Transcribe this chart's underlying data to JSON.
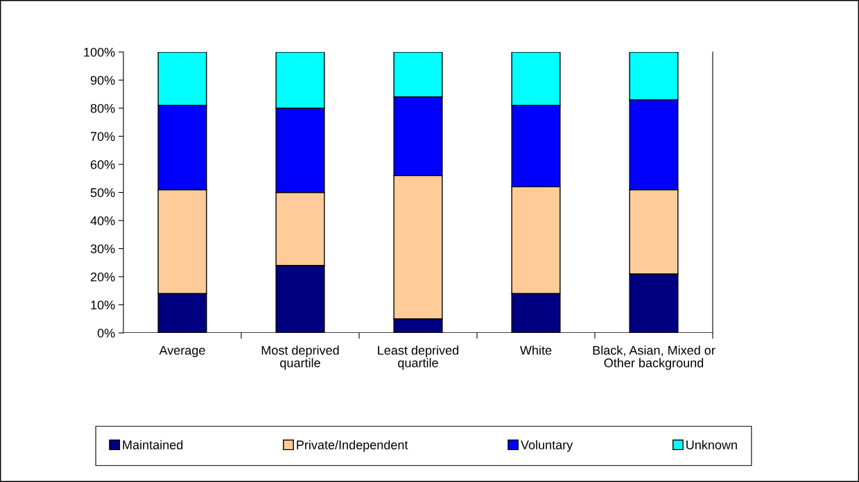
{
  "chart_data": {
    "type": "bar",
    "stacked": true,
    "categories": [
      "Average",
      "Most deprived\nquartile",
      "Least deprived\nquartile",
      "White",
      "Black, Asian, Mixed or\nOther background"
    ],
    "series": [
      {
        "name": "Maintained",
        "color": "#000080",
        "values": [
          14,
          24,
          5,
          14,
          21
        ]
      },
      {
        "name": "Private/Independent",
        "color": "#ffcc99",
        "values": [
          37,
          26,
          51,
          38,
          30
        ]
      },
      {
        "name": "Voluntary",
        "color": "#0000ff",
        "values": [
          30,
          30,
          28,
          29,
          32
        ]
      },
      {
        "name": "Unknown",
        "color": "#00ffff",
        "values": [
          19,
          20,
          16,
          19,
          17
        ]
      }
    ],
    "ylim": [
      0,
      100
    ],
    "yticks": [
      {
        "value": 0,
        "label": "0%"
      },
      {
        "value": 10,
        "label": "10%"
      },
      {
        "value": 20,
        "label": "20%"
      },
      {
        "value": 30,
        "label": "30%"
      },
      {
        "value": 40,
        "label": "40%"
      },
      {
        "value": 50,
        "label": "50%"
      },
      {
        "value": 60,
        "label": "60%"
      },
      {
        "value": 70,
        "label": "70%"
      },
      {
        "value": 80,
        "label": "80%"
      },
      {
        "value": 90,
        "label": "90%"
      },
      {
        "value": 100,
        "label": "100%"
      }
    ],
    "grid": false,
    "legend": "bottom"
  }
}
